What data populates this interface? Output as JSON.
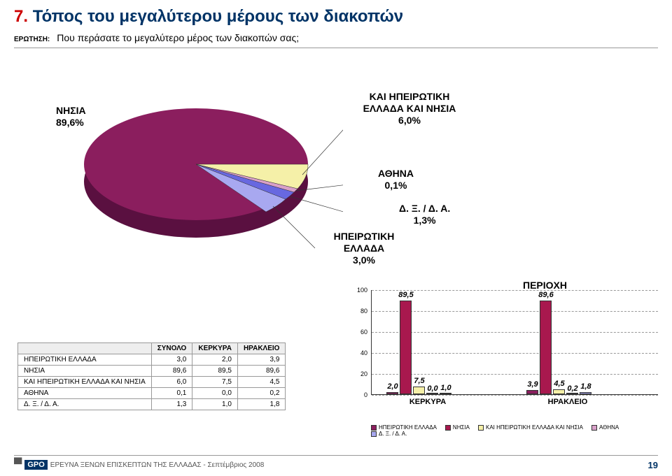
{
  "header": {
    "number": "7.",
    "title": "Τόπος του μεγαλύτερου μέρους των διακοπών",
    "question_label": "ΕΡΩΤΗΣΗ:",
    "question_text": "Που περάσατε το μεγαλύτερο μέρος των διακοπών σας;"
  },
  "pie": {
    "labels": {
      "nisia": {
        "name": "ΝΗΣΙΑ",
        "pct": "89,6%"
      },
      "kai_ip": {
        "name": "ΚΑΙ ΗΠΕΙΡΩΤΙΚΗ ΕΛΛΑΔΑ ΚΑΙ ΝΗΣΙΑ",
        "pct": "6,0%"
      },
      "athina": {
        "name": "ΑΘΗΝΑ",
        "pct": "0,1%"
      },
      "dxda": {
        "name": "Δ. Ξ. / Δ. Α.",
        "pct": "1,3%"
      },
      "ipirotiki": {
        "name": "ΗΠΕΙΡΩΤΙΚΗ ΕΛΛΑΔΑ",
        "pct": "3,0%"
      }
    },
    "slice_colors": {
      "nisia": "#8b1e5e",
      "kai_ip": "#f5f0a8",
      "athina": "#d8a0c8",
      "dxda": "#6868e0",
      "ipirotiki": "#a8a8f0"
    }
  },
  "bar": {
    "title": "ΠΕΡΙΟΧΗ",
    "ylim": [
      0,
      100
    ],
    "ytick_step": 20,
    "categories": [
      "ΚΕΡΚΥΡΑ",
      "ΗΡΑΚΛΕΙΟ"
    ],
    "series": [
      {
        "name": "ΗΠΕΙΡΩΤΙΚΗ ΕΛΛΑΔΑ",
        "color": "#8b1e5e",
        "values": [
          "2,0",
          "3,9"
        ],
        "nums": [
          2.0,
          3.9
        ]
      },
      {
        "name": "ΝΗΣΙΑ",
        "color": "#a8184e",
        "values": [
          "89,5",
          "89,6"
        ],
        "nums": [
          89.5,
          89.6
        ]
      },
      {
        "name": "ΚΑΙ ΗΠΕΙΡΩΤΙΚΗ ΕΛΛΑΔΑ ΚΑΙ ΝΗΣΙΑ",
        "color": "#f5f0a8",
        "values": [
          "7,5",
          "4,5"
        ],
        "nums": [
          7.5,
          4.5
        ]
      },
      {
        "name": "ΑΘΗΝΑ",
        "color": "#d8a0c8",
        "values": [
          "0,0",
          "0,2"
        ],
        "nums": [
          0.0,
          0.2
        ]
      },
      {
        "name": "Δ. Ξ. / Δ. Α.",
        "color": "#a8a8f0",
        "values": [
          "1,0",
          "1,8"
        ],
        "nums": [
          1.0,
          1.8
        ]
      }
    ]
  },
  "table": {
    "headers": [
      "",
      "ΣΥΝΟΛΟ",
      "ΚΕΡΚΥΡΑ",
      "ΗΡΑΚΛΕΙΟ"
    ],
    "rows": [
      [
        "ΗΠΕΙΡΩΤΙΚΗ ΕΛΛΑΔΑ",
        "3,0",
        "2,0",
        "3,9"
      ],
      [
        "ΝΗΣΙΑ",
        "89,6",
        "89,5",
        "89,6"
      ],
      [
        "ΚΑΙ ΗΠΕΙΡΩΤΙΚΗ ΕΛΛΑΔΑ ΚΑΙ ΝΗΣΙΑ",
        "6,0",
        "7,5",
        "4,5"
      ],
      [
        "ΑΘΗΝΑ",
        "0,1",
        "0,0",
        "0,2"
      ],
      [
        "Δ. Ξ. / Δ. Α.",
        "1,3",
        "1,0",
        "1,8"
      ]
    ]
  },
  "footer": {
    "logo_text": "GPO",
    "text": "ΕΡΕΥΝΑ ΞΕΝΩΝ ΕΠΙΣΚΕΠΤΩΝ ΤΗΣ ΕΛΛΑΔΑΣ  -  Σεπτέμβριος 2008",
    "page": "19"
  }
}
